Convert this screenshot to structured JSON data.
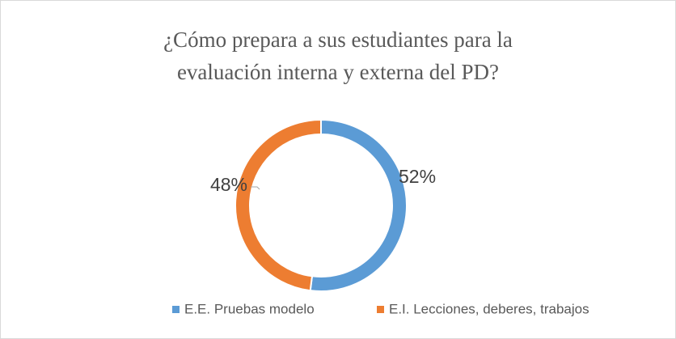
{
  "chart_data": {
    "type": "donut",
    "title": [
      "¿Cómo prepara a sus estudiantes para la",
      "evaluación interna y externa del PD?"
    ],
    "categories": [
      "E.E. Pruebas modelo",
      "E.I. Lecciones, deberes, trabajos"
    ],
    "values": [
      52,
      48
    ],
    "value_labels": [
      "52%",
      "48%"
    ],
    "colors": [
      "#5b9bd5",
      "#ed7d31"
    ],
    "legend": "bottom"
  }
}
